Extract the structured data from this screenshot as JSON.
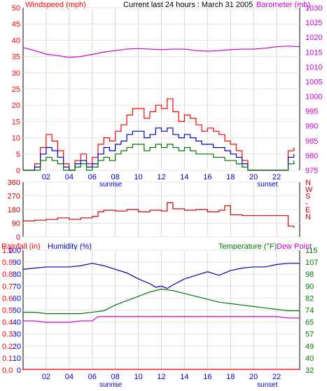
{
  "chart_data": [
    {
      "type": "line",
      "title": "Current last 24 hours : March 31 2005",
      "left_label": "Windspeed (mph)",
      "right_label": "Barometer (mb)",
      "x_ticks": [
        "02",
        "04",
        "06",
        "08",
        "10",
        "12",
        "14",
        "16",
        "18",
        "20",
        "22"
      ],
      "x_ticks_at": [
        2,
        4,
        6,
        8,
        10,
        12,
        14,
        16,
        18,
        20,
        22
      ],
      "xlim": [
        0,
        24
      ],
      "markers": [
        {
          "label": "sunrise",
          "x": 7.6
        },
        {
          "label": "sunset",
          "x": 21.2
        }
      ],
      "left_ticks": [
        0,
        5,
        10,
        15,
        20,
        25,
        30,
        35,
        40,
        45,
        50
      ],
      "ylim_left": [
        0,
        50
      ],
      "right_ticks": [
        975,
        980,
        985,
        990,
        995,
        1000,
        1005,
        1010,
        1015,
        1020,
        1025,
        1030
      ],
      "ylim_right": [
        975,
        1030
      ],
      "grid": true,
      "series": [
        {
          "axis": "right",
          "color": "#cc00cc",
          "shape": "line",
          "x": [
            0,
            1,
            2,
            3,
            4,
            5,
            6,
            7,
            8,
            9,
            10,
            11,
            12,
            13,
            14,
            15,
            16,
            17,
            18,
            19,
            20,
            21,
            22,
            23,
            24
          ],
          "values": [
            1016.5,
            1015.5,
            1014.3,
            1013.8,
            1013.2,
            1013.5,
            1014.2,
            1015.0,
            1015.5,
            1016.0,
            1016.2,
            1016.0,
            1015.8,
            1016.0,
            1016.0,
            1015.5,
            1015.3,
            1015.5,
            1015.8,
            1016.0,
            1016.0,
            1016.3,
            1016.8,
            1017.0,
            1016.8
          ]
        },
        {
          "axis": "left",
          "color": "#ff0000",
          "shape": "spiky",
          "x": [
            0,
            0.5,
            1,
            1.5,
            2,
            2.5,
            3,
            3.5,
            4,
            4.5,
            5,
            5.5,
            6,
            6.5,
            7,
            7.5,
            8,
            8.5,
            9,
            9.5,
            10,
            10.5,
            11,
            11.5,
            12,
            12.5,
            13,
            13.5,
            14,
            14.5,
            15,
            15.5,
            16,
            16.5,
            17,
            17.5,
            18,
            18.5,
            19,
            19.5,
            20,
            20.5,
            21,
            21.5,
            22,
            22.5,
            23,
            23.5
          ],
          "values": [
            0,
            0,
            2,
            7,
            11,
            9,
            6,
            2,
            0,
            3,
            5,
            2,
            4,
            8,
            10,
            9,
            12,
            14,
            17,
            19,
            19,
            16,
            18,
            20,
            19,
            22,
            18,
            15,
            17,
            16,
            14,
            12,
            13,
            12,
            11,
            9,
            8,
            6,
            3,
            0,
            0,
            0,
            0,
            0,
            0,
            0,
            6,
            7
          ]
        },
        {
          "axis": "left",
          "color": "#0000cc",
          "shape": "spiky",
          "x": [
            0,
            0.5,
            1,
            1.5,
            2,
            2.5,
            3,
            3.5,
            4,
            4.5,
            5,
            5.5,
            6,
            6.5,
            7,
            7.5,
            8,
            8.5,
            9,
            9.5,
            10,
            10.5,
            11,
            11.5,
            12,
            12.5,
            13,
            13.5,
            14,
            14.5,
            15,
            15.5,
            16,
            16.5,
            17,
            17.5,
            18,
            18.5,
            19,
            19.5,
            20,
            20.5,
            21,
            21.5,
            22,
            22.5,
            23,
            23.5
          ],
          "values": [
            0,
            0,
            1,
            5,
            7,
            6,
            4,
            1,
            0,
            2,
            3,
            1,
            2,
            5,
            7,
            6,
            8,
            9,
            11,
            12,
            12,
            10,
            11,
            13,
            12,
            13,
            11,
            10,
            11,
            10,
            9,
            8,
            8,
            7,
            7,
            6,
            5,
            4,
            2,
            0,
            0,
            0,
            0,
            0,
            0,
            0,
            4,
            5
          ]
        },
        {
          "axis": "left",
          "color": "#007700",
          "shape": "spiky",
          "x": [
            0,
            0.5,
            1,
            1.5,
            2,
            2.5,
            3,
            3.5,
            4,
            4.5,
            5,
            5.5,
            6,
            6.5,
            7,
            7.5,
            8,
            8.5,
            9,
            9.5,
            10,
            10.5,
            11,
            11.5,
            12,
            12.5,
            13,
            13.5,
            14,
            14.5,
            15,
            15.5,
            16,
            16.5,
            17,
            17.5,
            18,
            18.5,
            19,
            19.5,
            20,
            20.5,
            21,
            21.5,
            22,
            22.5,
            23,
            23.5
          ],
          "values": [
            0,
            0,
            0,
            3,
            4,
            3,
            2,
            0,
            0,
            1,
            2,
            0,
            1,
            3,
            4,
            3,
            5,
            6,
            7,
            8,
            8,
            6,
            7,
            8,
            7,
            8,
            7,
            6,
            7,
            6,
            5,
            5,
            5,
            4,
            4,
            3,
            3,
            2,
            1,
            0,
            0,
            0,
            0,
            0,
            0,
            0,
            2,
            3
          ]
        }
      ]
    },
    {
      "type": "line",
      "left_ticks": [
        0,
        90,
        180,
        270,
        360
      ],
      "ylim_left": [
        0,
        360
      ],
      "right_ticks": [
        "N",
        "W",
        "S",
        "-",
        "E",
        "N"
      ],
      "right_ticks_at": [
        360,
        315,
        270,
        225,
        180,
        135
      ],
      "x_ticks_at": [
        2,
        4,
        6,
        8,
        10,
        12,
        14,
        16,
        18,
        20,
        22
      ],
      "xlim": [
        0,
        24
      ],
      "grid": true,
      "series": [
        {
          "axis": "left",
          "color": "#cc0000",
          "shape": "spiky",
          "x": [
            0,
            1,
            2,
            3,
            4,
            5,
            6,
            6.5,
            7,
            8,
            9,
            10,
            11,
            12,
            12.5,
            13,
            14,
            15,
            16,
            17,
            17.5,
            18,
            19,
            20,
            21,
            22,
            23,
            23.5
          ],
          "values": [
            105,
            110,
            115,
            125,
            115,
            125,
            135,
            165,
            175,
            170,
            180,
            165,
            175,
            170,
            225,
            185,
            175,
            180,
            165,
            175,
            205,
            145,
            140,
            140,
            140,
            140,
            70,
            60
          ]
        }
      ]
    },
    {
      "type": "line",
      "left_label": "Rainfall (in)",
      "left2_label": "Humidity (%)",
      "right_label": "Temperature (°F)",
      "right2_label": "Dew Point",
      "x_ticks": [
        "02",
        "04",
        "06",
        "08",
        "10",
        "12",
        "14",
        "16",
        "18",
        "20",
        "22"
      ],
      "x_ticks_at": [
        2,
        4,
        6,
        8,
        10,
        12,
        14,
        16,
        18,
        20,
        22
      ],
      "xlim": [
        0,
        24
      ],
      "markers": [
        {
          "label": "sunrise",
          "x": 7.6
        },
        {
          "label": "sunset",
          "x": 21.2
        }
      ],
      "rain_ticks": [
        "0.0",
        "0.1",
        "0.2",
        "0.3",
        "0.4",
        "0.5",
        "0.6",
        "0.7",
        "0.8",
        "0.9",
        "1.0"
      ],
      "humidity_ticks": [
        "0",
        "10",
        "20",
        "30",
        "40",
        "50",
        "60",
        "70",
        "80",
        "90",
        "100"
      ],
      "temp_ticks": [
        "32",
        "40",
        "49",
        "57",
        "65",
        "74",
        "82",
        "90",
        "98",
        "107",
        "115"
      ],
      "ylim_left": [
        0,
        100
      ],
      "ylim_right": [
        32,
        115
      ],
      "grid": true,
      "series": [
        {
          "axis": "left",
          "color": "#0000aa",
          "shape": "line",
          "name": "Humidity (%)",
          "x": [
            0,
            1,
            2,
            3,
            4,
            5,
            6,
            7,
            8,
            9,
            10,
            11,
            11.5,
            12,
            12.5,
            13,
            14,
            15,
            16,
            17,
            18,
            19,
            20,
            21,
            22,
            23,
            24
          ],
          "values": [
            84,
            85,
            86,
            86,
            86,
            87,
            89,
            87,
            84,
            81,
            76,
            72,
            69,
            70,
            68,
            71,
            76,
            79,
            82,
            79,
            83,
            85,
            86,
            86,
            88,
            89,
            89
          ]
        },
        {
          "axis": "right",
          "color": "#007700",
          "shape": "line",
          "name": "Temperature",
          "x": [
            0,
            1,
            2,
            3,
            4,
            5,
            6,
            7,
            8,
            9,
            10,
            11,
            12,
            13,
            14,
            15,
            16,
            17,
            18,
            19,
            20,
            21,
            22,
            23,
            24
          ],
          "values": [
            72,
            72,
            71,
            71,
            71,
            71,
            72,
            73,
            77,
            80,
            83,
            86,
            88,
            87,
            85,
            83,
            81,
            79,
            78,
            77,
            76,
            75,
            74,
            73,
            73
          ]
        },
        {
          "axis": "right",
          "color": "#cc00cc",
          "shape": "line",
          "name": "Dew Point",
          "x": [
            0,
            1,
            2,
            3,
            4,
            5,
            6,
            6.5,
            7,
            8,
            9,
            10,
            11,
            12,
            13,
            14,
            15,
            16,
            17,
            18,
            19,
            20,
            21,
            22,
            23,
            24
          ],
          "values": [
            66,
            66,
            65,
            65,
            65,
            66,
            66,
            69,
            69,
            69,
            69,
            69,
            69,
            69,
            69,
            69,
            69,
            69,
            69,
            69,
            69,
            69,
            69,
            69,
            68,
            68
          ]
        },
        {
          "axis": "left",
          "color": "#ff0000",
          "shape": "line",
          "name": "Rainfall (in)",
          "x": [
            0,
            24
          ],
          "values": [
            0.5,
            0.5
          ]
        }
      ]
    }
  ]
}
